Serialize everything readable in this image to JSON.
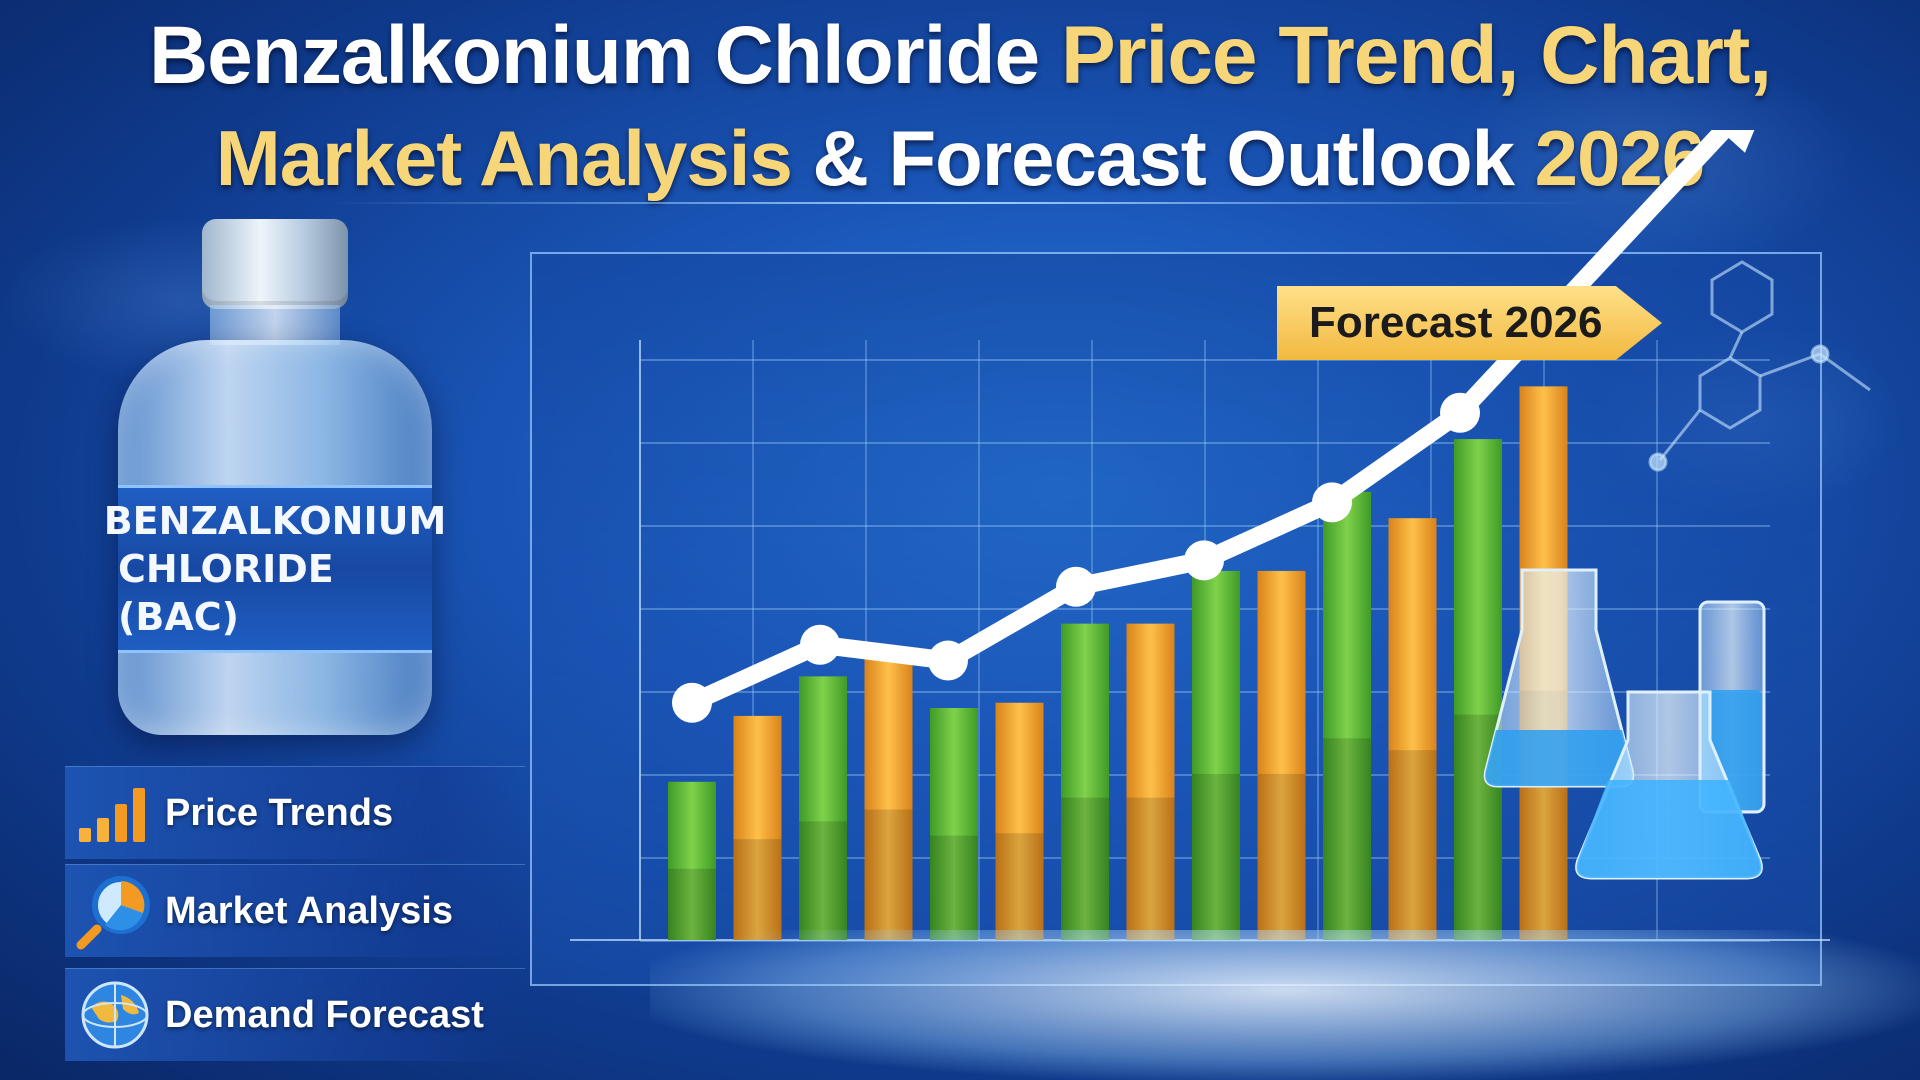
{
  "title": {
    "line1_white": "Benzalkonium Chloride ",
    "line1_yellow": "Price Trend, Chart,",
    "line2_yellow_a": "Market Analysis",
    "line2_white": " & Forecast Outlook ",
    "line2_yellow_b": "2026"
  },
  "bottle": {
    "label_line1": "BENZALKONIUM",
    "label_line2": "CHLORIDE (BAC)"
  },
  "menu": {
    "items": [
      {
        "label": "Price Trends",
        "icon": "bar-chart-icon"
      },
      {
        "label": "Market Analysis",
        "icon": "magnifier-pie-icon"
      },
      {
        "label": "Demand Forecast",
        "icon": "globe-icon"
      }
    ]
  },
  "forecast_tag": "Forecast 2026",
  "colors": {
    "title_yellow": "#f7d67a",
    "bar_green": "#5fb83a",
    "bar_orange": "#f2a22a",
    "line": "#ffffff",
    "tag": "#f2b93f"
  },
  "chart_data": {
    "type": "bar",
    "series": [
      {
        "values": [
          6,
          8.5,
          10,
          11,
          8.8,
          9,
          12,
          12,
          14,
          14,
          17,
          16,
          19,
          21
        ]
      }
    ],
    "line": {
      "values": [
        9,
        11.2,
        10.6,
        13.4,
        14.4,
        16.6,
        20
      ]
    },
    "title": "",
    "xlabel": "",
    "ylabel": "",
    "grid": true,
    "legend": "none"
  }
}
